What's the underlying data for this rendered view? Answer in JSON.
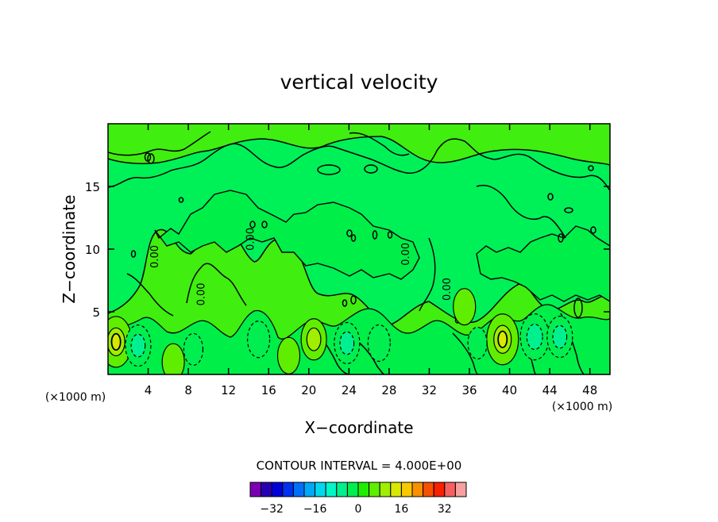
{
  "chart_data": {
    "type": "heatmap",
    "title": "vertical velocity",
    "xlabel": "X−coordinate",
    "ylabel": "Z−coordinate",
    "x_unit": "(×1000 m)",
    "y_unit": "(×1000 m)",
    "xlim": [
      0,
      50
    ],
    "ylim": [
      0,
      20
    ],
    "x_ticks": [
      4,
      8,
      12,
      16,
      20,
      24,
      28,
      32,
      36,
      40,
      44,
      48
    ],
    "y_ticks": [
      5,
      10,
      15
    ],
    "contour_interval_text": "CONTOUR INTERVAL = 4.000E+00",
    "contour_labels": [
      {
        "x": 5.0,
        "y": 9.4,
        "text": "0.00"
      },
      {
        "x": 9.6,
        "y": 6.4,
        "text": "0.00"
      },
      {
        "x": 14.5,
        "y": 10.8,
        "text": "0.00"
      },
      {
        "x": 30.0,
        "y": 9.6,
        "text": "0.00"
      },
      {
        "x": 34.1,
        "y": 6.8,
        "text": "0.00"
      }
    ],
    "features": [
      {
        "type": "updraft",
        "x": 0.8,
        "z": 2.6,
        "value": 6
      },
      {
        "type": "updraft",
        "x": 6.5,
        "z": 1.0,
        "value": 3
      },
      {
        "type": "updraft",
        "x": 18.0,
        "z": 1.5,
        "value": 3
      },
      {
        "type": "updraft",
        "x": 20.5,
        "z": 2.8,
        "value": 4
      },
      {
        "type": "updraft",
        "x": 35.5,
        "z": 5.4,
        "value": 3
      },
      {
        "type": "updraft",
        "x": 39.3,
        "z": 2.8,
        "value": 6
      },
      {
        "type": "downdraft",
        "x": 3.0,
        "z": 2.3,
        "value": -4
      },
      {
        "type": "downdraft",
        "x": 8.5,
        "z": 2.0,
        "value": -2
      },
      {
        "type": "downdraft",
        "x": 15.0,
        "z": 2.8,
        "value": -3
      },
      {
        "type": "downdraft",
        "x": 23.8,
        "z": 2.5,
        "value": -4
      },
      {
        "type": "downdraft",
        "x": 27.0,
        "z": 2.5,
        "value": -3
      },
      {
        "type": "downdraft",
        "x": 36.8,
        "z": 2.5,
        "value": -2
      },
      {
        "type": "downdraft",
        "x": 42.5,
        "z": 3.0,
        "value": -5
      },
      {
        "type": "downdraft",
        "x": 45.0,
        "z": 3.0,
        "value": -4
      }
    ],
    "colorbar": {
      "tick_labels": [
        "−32",
        "−16",
        "0",
        "16",
        "32"
      ],
      "tick_values": [
        -32,
        -16,
        0,
        16,
        32
      ],
      "min": -40,
      "max": 40,
      "step": 4,
      "colors": [
        "#7a00b4",
        "#2800b4",
        "#0000d8",
        "#0030f0",
        "#0070f8",
        "#00a8f8",
        "#00d8f0",
        "#00f8c8",
        "#00f090",
        "#00ee50",
        "#20ee00",
        "#60ee00",
        "#a0ee00",
        "#d8e800",
        "#f8c800",
        "#f89000",
        "#f85000",
        "#f82000",
        "#f86060",
        "#f8a0a0"
      ]
    }
  }
}
